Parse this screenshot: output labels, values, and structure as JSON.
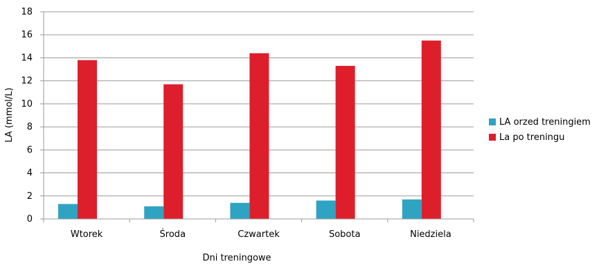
{
  "chart_data": {
    "type": "bar",
    "categories": [
      "Wtorek",
      "Środa",
      "Czwartek",
      "Sobota",
      "Niedziela"
    ],
    "series": [
      {
        "name": "LA orzed treningiem",
        "values": [
          1.3,
          1.1,
          1.4,
          1.6,
          1.7
        ],
        "color": "#2fa3c2"
      },
      {
        "name": "La po treningu",
        "values": [
          13.8,
          11.7,
          14.4,
          13.3,
          15.5
        ],
        "color": "#dd1f2b"
      }
    ],
    "title": "",
    "xlabel": "Dni treningowe",
    "ylabel": "LA (mmol/L)",
    "ylim": [
      0,
      18
    ],
    "yticks": [
      0,
      2,
      4,
      6,
      8,
      10,
      12,
      14,
      16,
      18
    ],
    "grid": true,
    "legend_position": "right"
  }
}
